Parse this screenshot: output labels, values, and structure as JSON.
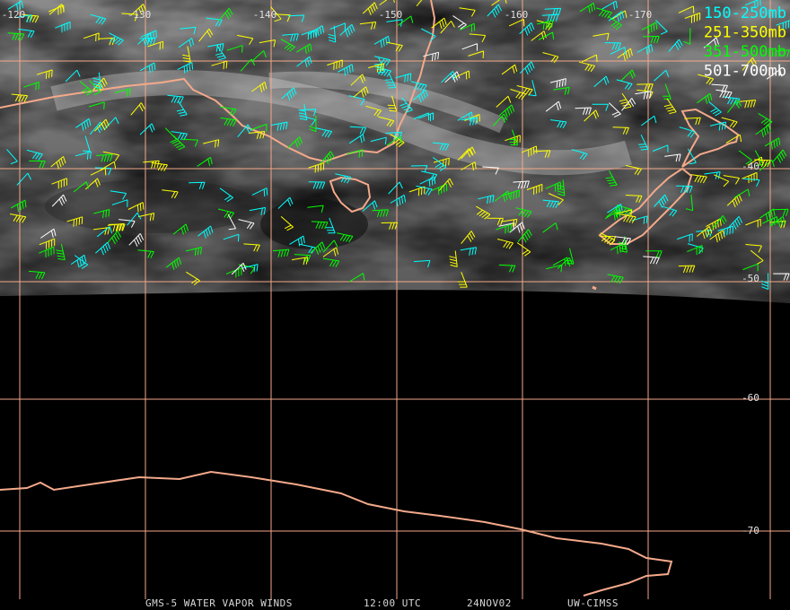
{
  "map": {
    "longitude_labels": [
      "-120",
      "-130",
      "-140",
      "-150",
      "-160",
      "-170"
    ],
    "latitude_labels": [
      "-40",
      "-50",
      "-60",
      "-70"
    ],
    "legend": [
      {
        "label": "150-250mb",
        "color": "#00ffff"
      },
      {
        "label": "251-350mb",
        "color": "#ffff00"
      },
      {
        "label": "351-500mb",
        "color": "#00ff00"
      },
      {
        "label": "501-700mb",
        "color": "#ffffff"
      }
    ],
    "footer": [
      "GMS-5 WATER VAPOR WINDS",
      "12:00 UTC",
      "24NOV02",
      "UW-CIMSS"
    ]
  }
}
